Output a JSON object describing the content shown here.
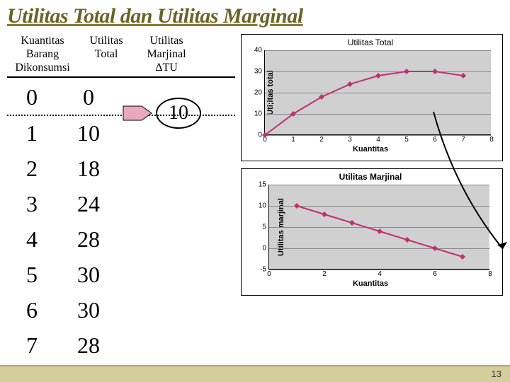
{
  "title": "Utilitas Total dan Utilitas Marginal",
  "table": {
    "headers": {
      "col1": "Kuantitas Barang Dikonsumsi",
      "col2": "Utilitas Total",
      "col3": "Utilitas Marjinal ΔTU"
    },
    "rows": [
      {
        "q": "0",
        "tu": "0"
      },
      {
        "q": "1",
        "tu": "10"
      },
      {
        "q": "2",
        "tu": "18"
      },
      {
        "q": "3",
        "tu": "24"
      },
      {
        "q": "4",
        "tu": "28"
      },
      {
        "q": "5",
        "tu": "30"
      },
      {
        "q": "6",
        "tu": "30"
      },
      {
        "q": "7",
        "tu": "28"
      }
    ],
    "callout_value": "10"
  },
  "chart_top": {
    "title": "Utilitas Total",
    "type": "line",
    "ylabel": "Uti;itas total",
    "xlabel": "Kuantitas",
    "xticks": [
      0,
      1,
      2,
      3,
      4,
      5,
      6,
      7,
      8
    ],
    "yticks": [
      0,
      10,
      20,
      30,
      40
    ],
    "ylim": [
      0,
      40
    ],
    "xlim": [
      0,
      8
    ],
    "series_color": "#c03070",
    "marker": "diamond",
    "grid_color": "#888888",
    "background_color": "#d0d0d0",
    "data": [
      {
        "x": 0,
        "y": 0
      },
      {
        "x": 1,
        "y": 10
      },
      {
        "x": 2,
        "y": 18
      },
      {
        "x": 3,
        "y": 24
      },
      {
        "x": 4,
        "y": 28
      },
      {
        "x": 5,
        "y": 30
      },
      {
        "x": 6,
        "y": 30
      },
      {
        "x": 7,
        "y": 28
      }
    ]
  },
  "chart_bottom": {
    "title": "Utilitas Marjinal",
    "type": "line",
    "ylabel": "Utilitas marjinal",
    "xlabel": "Kuantitas",
    "xticks": [
      0,
      2,
      4,
      6,
      8
    ],
    "yticks": [
      -5,
      0,
      5,
      10,
      15
    ],
    "ylim": [
      -5,
      15
    ],
    "xlim": [
      0,
      8
    ],
    "series_color": "#c03070",
    "marker": "diamond",
    "grid_color": "#888888",
    "background_color": "#d0d0d0",
    "data": [
      {
        "x": 1,
        "y": 10
      },
      {
        "x": 2,
        "y": 8
      },
      {
        "x": 3,
        "y": 6
      },
      {
        "x": 4,
        "y": 4
      },
      {
        "x": 5,
        "y": 2
      },
      {
        "x": 6,
        "y": 0
      },
      {
        "x": 7,
        "y": -2
      }
    ]
  },
  "page_number": "13",
  "arrow_color": "#c03070",
  "callout_circle_color": "#000000"
}
